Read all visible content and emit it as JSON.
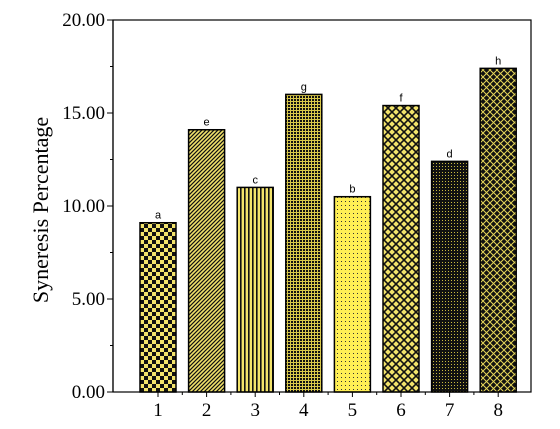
{
  "chart_data": {
    "type": "bar",
    "title": "",
    "xlabel": "",
    "ylabel": "Syneresis Percentage",
    "ylim": [
      0,
      20
    ],
    "yticks": [
      "0.00",
      "5.00",
      "10.00",
      "15.00",
      "20.00"
    ],
    "categories": [
      "1",
      "2",
      "3",
      "4",
      "5",
      "6",
      "7",
      "8"
    ],
    "values": [
      9.1,
      14.1,
      11.0,
      16.0,
      10.5,
      15.4,
      12.4,
      17.4
    ],
    "bar_labels": [
      "a",
      "e",
      "c",
      "g",
      "b",
      "f",
      "d",
      "h"
    ],
    "grid": false,
    "legend": "none"
  },
  "colors": {
    "bar_fill": "#f2e36b",
    "bar_pattern": "#111111",
    "bar_fill_bright": "#ffef55",
    "axis": "#000000"
  }
}
